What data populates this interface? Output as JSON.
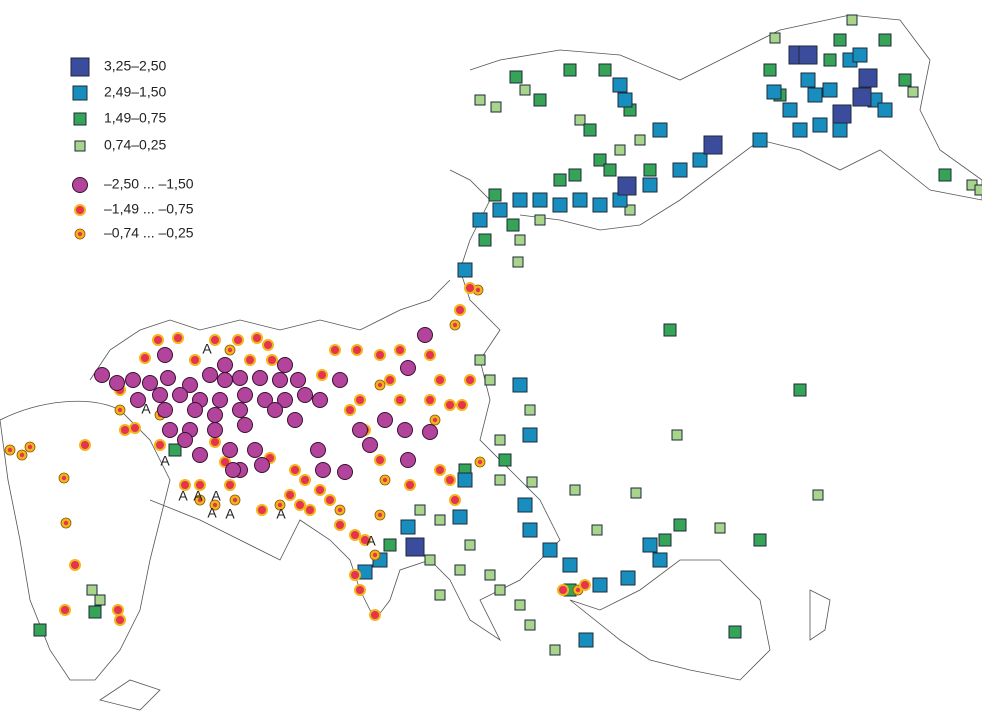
{
  "legend": [
    {
      "label": "3,25–2,50",
      "shape": "square",
      "color": "#3b4c9c"
    },
    {
      "label": "2,49–1,50",
      "shape": "square",
      "color": "#178ebd"
    },
    {
      "label": "1,49–0,75",
      "shape": "square",
      "color": "#35a456"
    },
    {
      "label": "0,74–0,25",
      "shape": "square",
      "color": "#a8d48c"
    },
    {
      "label": "–2,50 ... –1,50",
      "shape": "circle",
      "color": "#b2449c"
    },
    {
      "label": "–1,49 ... –0,75",
      "shape": "circle",
      "color": "#e4344f"
    },
    {
      "label": "–0,74 ... –0,25",
      "shape": "circle",
      "color": "#f2b51c"
    }
  ],
  "annotations": [
    "A",
    "A",
    "A",
    "A",
    "A",
    "A",
    "A",
    "A",
    "A",
    "A"
  ]
}
